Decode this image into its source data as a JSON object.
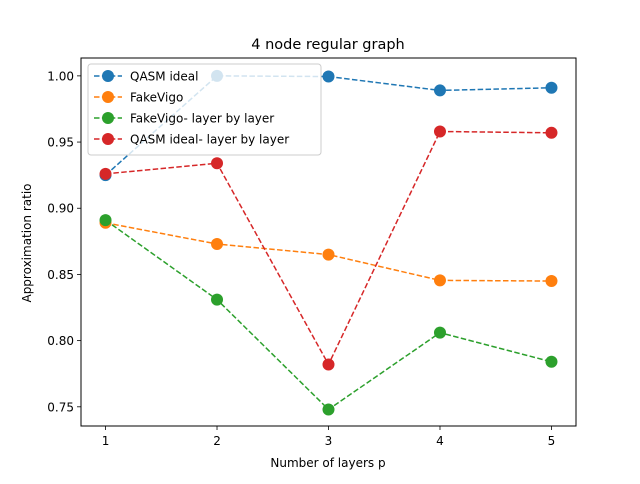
{
  "chart_data": {
    "type": "line",
    "title": "4 node regular graph",
    "xlabel": "Number of layers p",
    "ylabel": "Approximation ratio",
    "x": [
      1,
      2,
      3,
      4,
      5
    ],
    "xlim": [
      0.78,
      5.22
    ],
    "ylim": [
      0.7355,
      1.0135
    ],
    "xticks": [
      "1",
      "2",
      "3",
      "4",
      "5"
    ],
    "yticks": [
      "0.75",
      "0.80",
      "0.85",
      "0.90",
      "0.95",
      "1.00"
    ],
    "ytick_values": [
      0.75,
      0.8,
      0.85,
      0.9,
      0.95,
      1.0
    ],
    "grid": false,
    "legend_position": "top-left",
    "line_style": "dashed",
    "marker": "circle",
    "series": [
      {
        "name": "QASM ideal",
        "color": "#1f77b4",
        "values": [
          0.925,
          1.0,
          0.9995,
          0.989,
          0.991
        ]
      },
      {
        "name": "FakeVigo",
        "color": "#ff7f0e",
        "values": [
          0.889,
          0.873,
          0.865,
          0.8455,
          0.845
        ]
      },
      {
        "name": "FakeVigo- layer by layer",
        "color": "#2ca02c",
        "values": [
          0.891,
          0.831,
          0.748,
          0.806,
          0.784
        ]
      },
      {
        "name": "QASM ideal- layer by layer",
        "color": "#d62728",
        "values": [
          0.926,
          0.934,
          0.782,
          0.958,
          0.957
        ]
      }
    ]
  }
}
